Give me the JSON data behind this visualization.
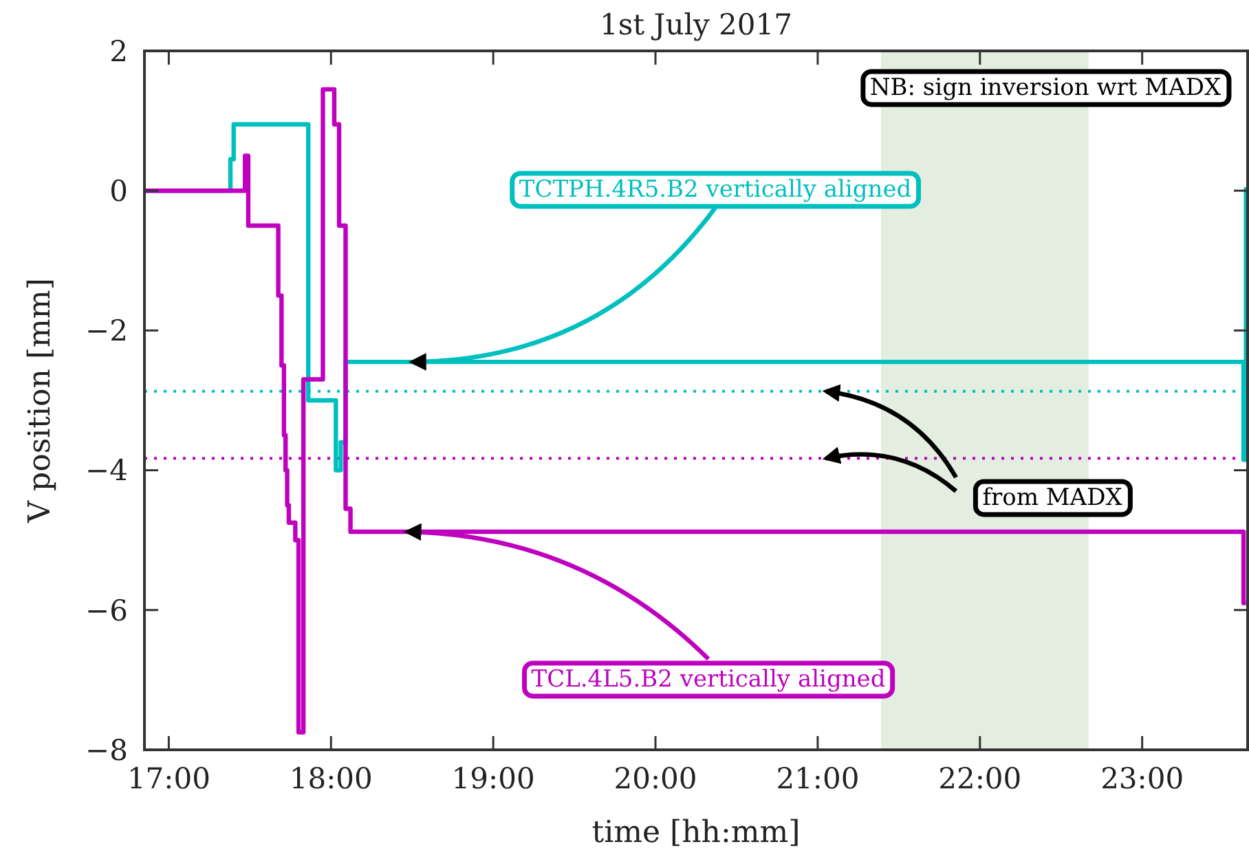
{
  "chart_data": {
    "type": "line",
    "title": "1st July 2017",
    "xlabel": "time [hh:mm]",
    "ylabel": "V position [mm]",
    "xlim": [
      16.85,
      23.65
    ],
    "ylim": [
      -8,
      2
    ],
    "xticks": [
      {
        "value": 17,
        "label": "17:00"
      },
      {
        "value": 18,
        "label": "18:00"
      },
      {
        "value": 19,
        "label": "19:00"
      },
      {
        "value": 20,
        "label": "20:00"
      },
      {
        "value": 21,
        "label": "21:00"
      },
      {
        "value": 22,
        "label": "22:00"
      },
      {
        "value": 23,
        "label": "23:00"
      }
    ],
    "yticks": [
      -8,
      -6,
      -4,
      -2,
      0,
      2
    ],
    "series": [
      {
        "color": "#00bfbf",
        "x": [
          16.85,
          17.38,
          17.38,
          17.4,
          17.4,
          17.86,
          17.86,
          18.03,
          18.03,
          18.06,
          18.06,
          18.09,
          18.09,
          23.625,
          23.625,
          23.64,
          23.64
        ],
        "values": [
          0,
          0,
          0.45,
          0.45,
          0.95,
          0.95,
          -3.0,
          -3.0,
          -4.0,
          -4.0,
          -3.6,
          -3.6,
          -2.45,
          -2.45,
          -3.85,
          -3.85,
          0.05
        ]
      },
      {
        "color": "#bf00bf",
        "x": [
          16.85,
          17.47,
          17.47,
          17.49,
          17.49,
          17.675,
          17.675,
          17.695,
          17.695,
          17.71,
          17.71,
          17.72,
          17.72,
          17.73,
          17.73,
          17.74,
          17.74,
          17.78,
          17.78,
          17.8,
          17.8,
          17.83,
          17.83,
          17.95,
          17.95,
          18.02,
          18.02,
          18.05,
          18.05,
          18.09,
          18.09,
          18.12,
          18.12,
          23.625,
          23.625,
          23.64
        ],
        "values": [
          0,
          0,
          0.5,
          0.5,
          -0.5,
          -0.5,
          -1.5,
          -1.5,
          -2.5,
          -2.5,
          -3.5,
          -3.5,
          -4.0,
          -4.0,
          -4.5,
          -4.5,
          -4.75,
          -4.75,
          -5.0,
          -5.0,
          -7.75,
          -7.75,
          -2.7,
          -2.7,
          1.45,
          1.45,
          0.95,
          0.95,
          -0.5,
          -0.5,
          -4.55,
          -4.55,
          -4.88,
          -4.88,
          -5.9,
          -5.9
        ]
      }
    ],
    "ref_lines": [
      {
        "axis": "y",
        "value": -2.87,
        "color": "#00bfbf",
        "line_style": "dotted"
      },
      {
        "axis": "y",
        "value": -3.83,
        "color": "#bf00bf",
        "line_style": "dotted"
      }
    ],
    "bands": [
      {
        "axis": "x",
        "from": 21.39,
        "to": 22.67,
        "color": "#e3eee1"
      }
    ],
    "annotations": [
      {
        "text": "TCTPH.4R5.B2 vertically aligned",
        "x": 18.5,
        "y": -2.45
      },
      {
        "text": "TCL.4L5.B2 vertically aligned",
        "x": 18.47,
        "y": -4.88
      },
      {
        "text": "from MADX",
        "x": 21.05,
        "y": -2.87
      },
      "NB: sign inversion wrt MADX"
    ]
  }
}
